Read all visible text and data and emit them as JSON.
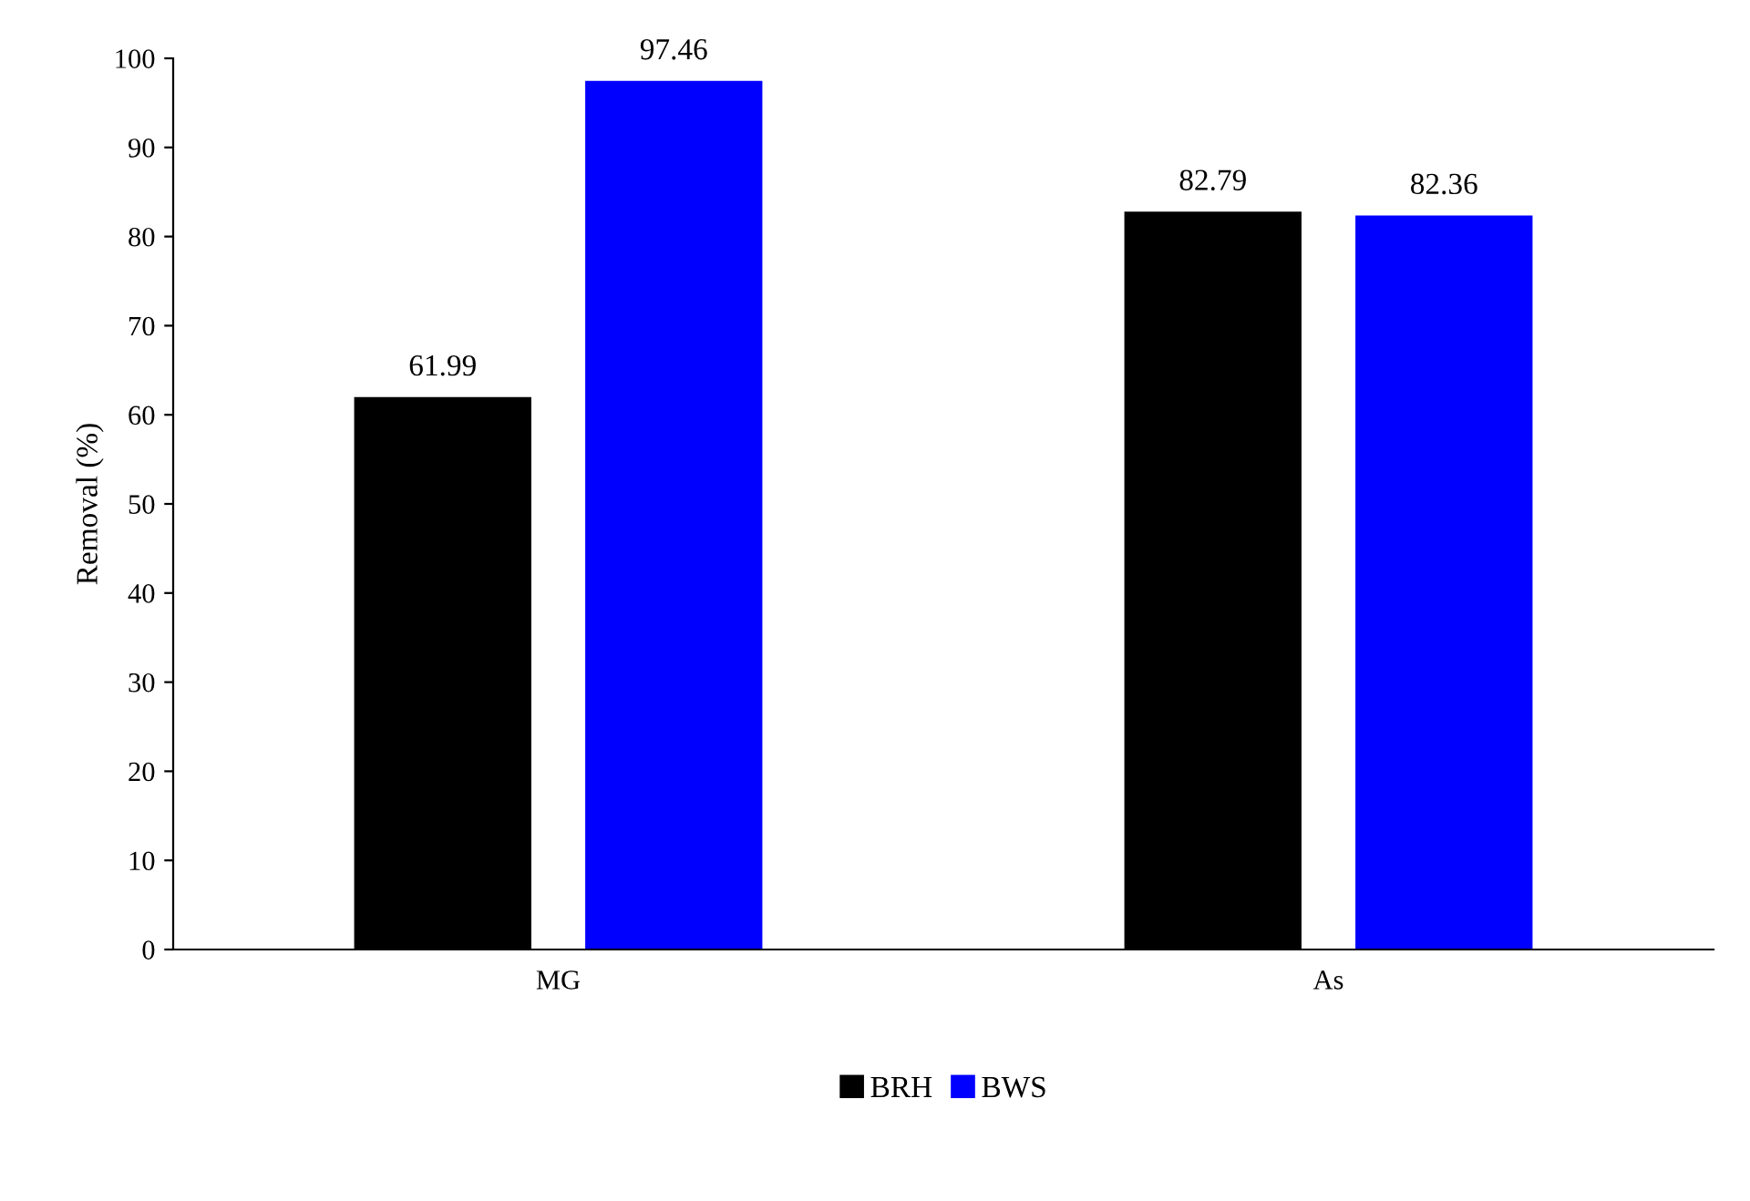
{
  "chart_data": {
    "type": "bar",
    "ylabel": "Removal (%)",
    "categories": [
      "MG",
      "As"
    ],
    "series": [
      {
        "name": "BRH",
        "color": "#000000",
        "values": [
          61.99,
          82.79
        ]
      },
      {
        "name": "BWS",
        "color": "#0000ff",
        "values": [
          97.46,
          82.36
        ]
      }
    ],
    "ylim": [
      0,
      100
    ],
    "yticks": [
      0,
      10,
      20,
      30,
      40,
      50,
      60,
      70,
      80,
      90,
      100
    ],
    "data_labels": true,
    "legend": "bottom",
    "grid": false
  }
}
